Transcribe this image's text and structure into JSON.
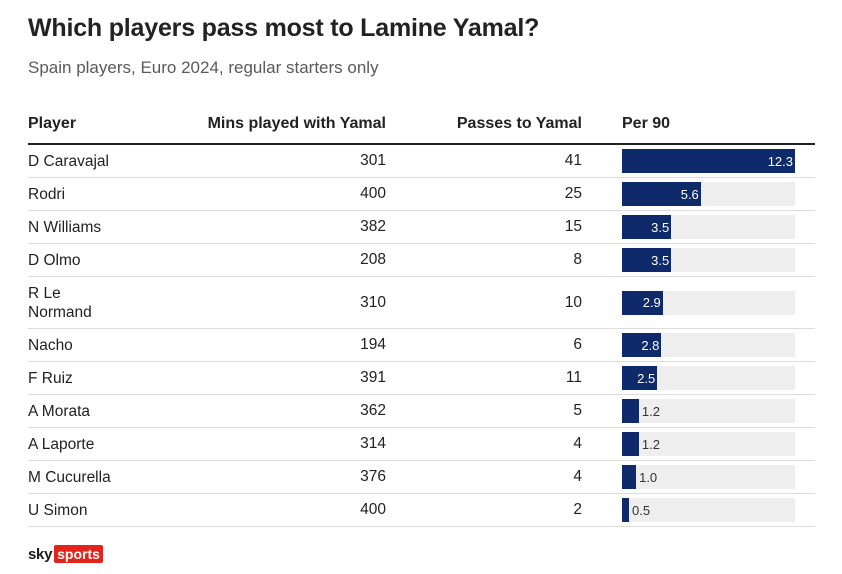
{
  "chart_data": {
    "type": "table",
    "title": "Which players pass most to Lamine Yamal?",
    "subtitle": "Spain players, Euro 2024, regular starters only",
    "columns": [
      "Player",
      "Mins played with Yamal",
      "Passes to Yamal",
      "Per 90"
    ],
    "bar_max": 12.3,
    "bar_color": "#0f2a6b",
    "track_color": "#eeeeee",
    "rows": [
      {
        "player": "D Caravajal",
        "mins": 301,
        "passes": 41,
        "per90": 12.3
      },
      {
        "player": "Rodri",
        "mins": 400,
        "passes": 25,
        "per90": 5.6
      },
      {
        "player": "N Williams",
        "mins": 382,
        "passes": 15,
        "per90": 3.5
      },
      {
        "player": "D Olmo",
        "mins": 208,
        "passes": 8,
        "per90": 3.5
      },
      {
        "player": "R Le Normand",
        "mins": 310,
        "passes": 10,
        "per90": 2.9
      },
      {
        "player": "Nacho",
        "mins": 194,
        "passes": 6,
        "per90": 2.8
      },
      {
        "player": "F Ruiz",
        "mins": 391,
        "passes": 11,
        "per90": 2.5
      },
      {
        "player": "A Morata",
        "mins": 362,
        "passes": 5,
        "per90": 1.2
      },
      {
        "player": "A Laporte",
        "mins": 314,
        "passes": 4,
        "per90": 1.2
      },
      {
        "player": "M Cucurella",
        "mins": 376,
        "passes": 4,
        "per90": 1.0
      },
      {
        "player": "U Simon",
        "mins": 400,
        "passes": 2,
        "per90": 0.5
      }
    ]
  },
  "brand": {
    "sky": "sky",
    "sports": "sports",
    "accent": "#e2241b"
  }
}
